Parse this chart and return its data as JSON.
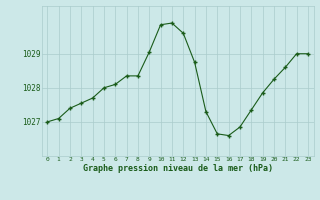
{
  "x": [
    0,
    1,
    2,
    3,
    4,
    5,
    6,
    7,
    8,
    9,
    10,
    11,
    12,
    13,
    14,
    15,
    16,
    17,
    18,
    19,
    20,
    21,
    22,
    23
  ],
  "y": [
    1027.0,
    1027.1,
    1027.4,
    1027.55,
    1027.7,
    1028.0,
    1028.1,
    1028.35,
    1028.35,
    1029.05,
    1029.85,
    1029.9,
    1029.6,
    1028.75,
    1027.3,
    1026.65,
    1026.6,
    1026.85,
    1027.35,
    1027.85,
    1028.25,
    1028.6,
    1029.0,
    1029.0
  ],
  "line_color": "#1a5c1a",
  "marker_color": "#1a5c1a",
  "bg_color": "#cce8e8",
  "grid_color": "#aacccc",
  "xlabel": "Graphe pression niveau de la mer (hPa)",
  "xlabel_color": "#1a5c1a",
  "tick_label_color": "#1a5c1a",
  "yticks": [
    1027,
    1028,
    1029
  ],
  "ylim": [
    1026.0,
    1030.4
  ],
  "xlim": [
    -0.5,
    23.5
  ],
  "xticks": [
    0,
    1,
    2,
    3,
    4,
    5,
    6,
    7,
    8,
    9,
    10,
    11,
    12,
    13,
    14,
    15,
    16,
    17,
    18,
    19,
    20,
    21,
    22,
    23
  ]
}
